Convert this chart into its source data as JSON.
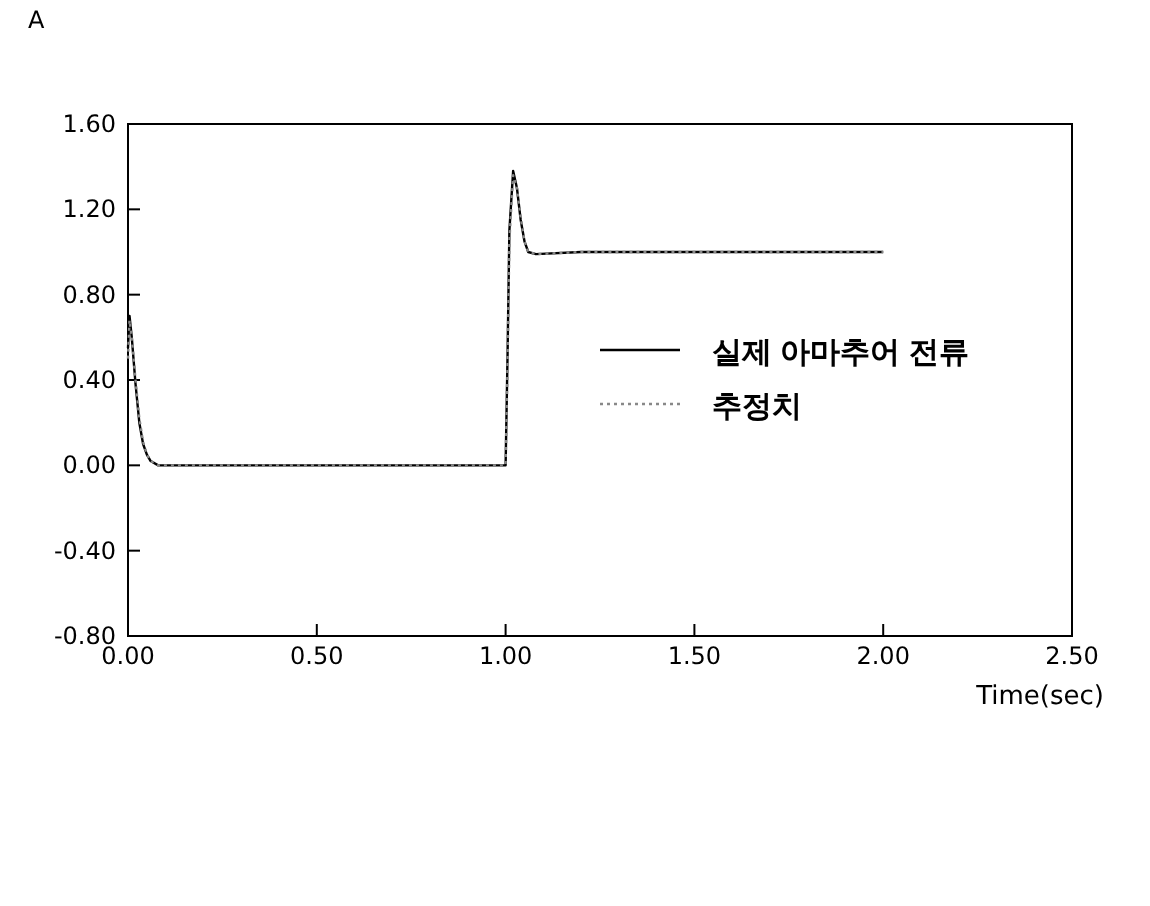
{
  "chart_data": {
    "type": "line",
    "ylabel": "A",
    "xlabel": "Time(sec)",
    "xlim": [
      0,
      2.5
    ],
    "ylim": [
      -0.8,
      1.6
    ],
    "xticks": [
      {
        "value": 0,
        "label": "0.00"
      },
      {
        "value": 0.5,
        "label": "0.50"
      },
      {
        "value": 1,
        "label": "1.00"
      },
      {
        "value": 1.5,
        "label": "1.50"
      },
      {
        "value": 2,
        "label": "2.00"
      },
      {
        "value": 2.5,
        "label": "2.50"
      }
    ],
    "yticks": [
      {
        "value": -0.8,
        "label": "-0.80"
      },
      {
        "value": -0.4,
        "label": "-0.40"
      },
      {
        "value": 0,
        "label": "0.00"
      },
      {
        "value": 0.4,
        "label": "0.40"
      },
      {
        "value": 0.8,
        "label": "0.80"
      },
      {
        "value": 1.2,
        "label": "1.20"
      },
      {
        "value": 1.6,
        "label": "1.60"
      }
    ],
    "legend": "right",
    "grid": false,
    "series": [
      {
        "name": "실제 아마추어 전류",
        "color": "#000000",
        "line_style": "solid",
        "x": [
          0,
          0.004,
          0.01,
          0.02,
          0.03,
          0.04,
          0.05,
          0.06,
          0.08,
          0.1,
          1.0,
          1.005,
          1.01,
          1.02,
          1.03,
          1.04,
          1.05,
          1.06,
          1.08,
          1.2,
          1.5,
          2.0
        ],
        "values": [
          0.55,
          0.7,
          0.6,
          0.38,
          0.2,
          0.1,
          0.05,
          0.02,
          0.0,
          0.0,
          0.0,
          0.5,
          1.1,
          1.38,
          1.3,
          1.15,
          1.05,
          1.0,
          0.99,
          1.0,
          1.0,
          1.0
        ]
      },
      {
        "name": "추정치",
        "color": "#888888",
        "line_style": "dotted",
        "x": [
          0,
          0.004,
          0.01,
          0.02,
          0.03,
          0.04,
          0.05,
          0.06,
          0.08,
          0.1,
          1.0,
          1.005,
          1.01,
          1.02,
          1.03,
          1.04,
          1.05,
          1.06,
          1.08,
          1.2,
          1.5,
          2.0
        ],
        "values": [
          0.5,
          0.68,
          0.6,
          0.4,
          0.22,
          0.11,
          0.05,
          0.02,
          0.0,
          0.0,
          0.0,
          0.45,
          1.05,
          1.36,
          1.3,
          1.16,
          1.05,
          1.0,
          0.99,
          1.0,
          1.0,
          1.0
        ]
      }
    ]
  }
}
